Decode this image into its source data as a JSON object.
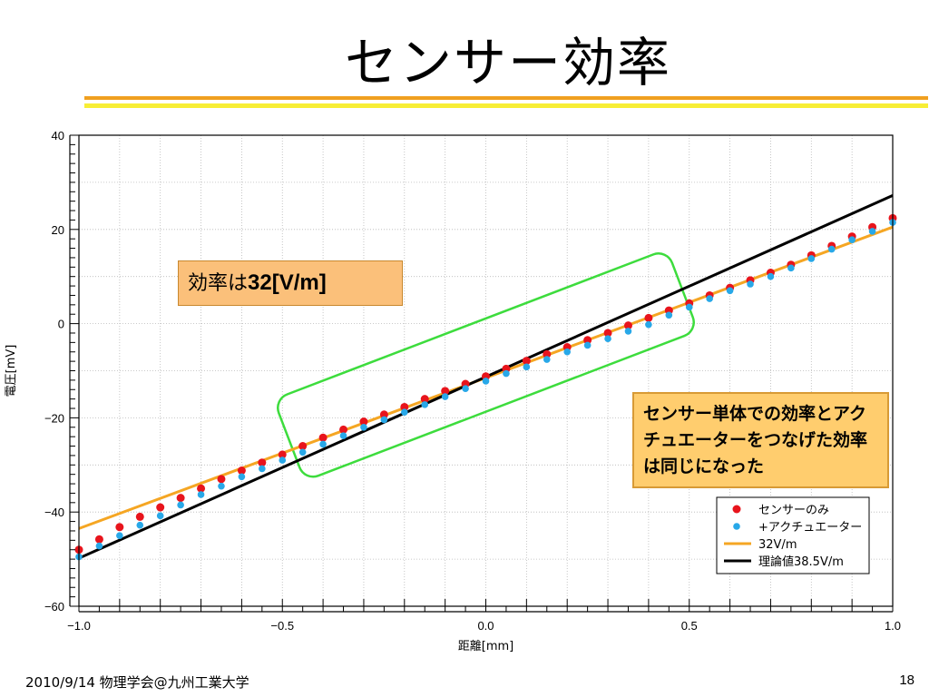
{
  "slide": {
    "title": "センサー効率",
    "callout_rate_text": "効率は",
    "callout_rate_value": "32[V/m]",
    "callout_note": "センサー単体での効率とアクチュエーターをつなげた効率は同じになった",
    "footer": "2010/9/14 物理学会@九州工業大学",
    "page_number": "18"
  },
  "colors": {
    "rule_orange": "#f0a020",
    "rule_yellow": "#f7ee36",
    "sensor_only": "#e8141c",
    "with_actuator": "#28a8e8",
    "fit_32": "#f5a623",
    "theory": "#000000",
    "highlight_box": "#3ddc3d"
  },
  "chart_data": {
    "type": "scatter",
    "xlabel": "距離[mm]",
    "ylabel": "電圧[mV]",
    "xlim": [
      -1.0,
      1.0
    ],
    "ylim": [
      -60,
      40
    ],
    "xticks": [
      -1.0,
      -0.5,
      0.0,
      0.5,
      1.0
    ],
    "xtick_labels": [
      "−1.0",
      "−0.5",
      "0.0",
      "0.5",
      "1.0"
    ],
    "yticks": [
      -60,
      -40,
      -20,
      0,
      20,
      40
    ],
    "ytick_labels": [
      "−60",
      "−40",
      "−20",
      "0",
      "20",
      "40"
    ],
    "grid": true,
    "legend_position": "bottom-right",
    "series": [
      {
        "name": "センサーのみ",
        "kind": "points",
        "x": [
          -1.0,
          -0.95,
          -0.9,
          -0.85,
          -0.8,
          -0.75,
          -0.7,
          -0.65,
          -0.6,
          -0.55,
          -0.5,
          -0.45,
          -0.4,
          -0.35,
          -0.3,
          -0.25,
          -0.2,
          -0.15,
          -0.1,
          -0.05,
          0.0,
          0.05,
          0.1,
          0.15,
          0.2,
          0.25,
          0.3,
          0.35,
          0.4,
          0.45,
          0.5,
          0.55,
          0.6,
          0.65,
          0.7,
          0.75,
          0.8,
          0.85,
          0.9,
          0.95,
          1.0
        ],
        "y": [
          -48.0,
          -45.8,
          -43.2,
          -41.0,
          -39.0,
          -37.0,
          -35.0,
          -33.0,
          -31.2,
          -29.5,
          -27.8,
          -26.0,
          -24.2,
          -22.5,
          -20.8,
          -19.3,
          -17.7,
          -16.0,
          -14.3,
          -12.8,
          -11.2,
          -9.6,
          -7.9,
          -6.5,
          -5.0,
          -3.5,
          -2.0,
          -0.4,
          1.2,
          2.8,
          4.3,
          6.0,
          7.6,
          9.2,
          10.8,
          12.5,
          14.5,
          16.5,
          18.5,
          20.5,
          22.4
        ]
      },
      {
        "name": "+アクチュエーター",
        "kind": "points",
        "x": [
          -1.0,
          -0.95,
          -0.9,
          -0.85,
          -0.8,
          -0.75,
          -0.7,
          -0.65,
          -0.6,
          -0.55,
          -0.5,
          -0.45,
          -0.4,
          -0.35,
          -0.3,
          -0.25,
          -0.2,
          -0.15,
          -0.1,
          -0.05,
          0.0,
          0.05,
          0.1,
          0.15,
          0.2,
          0.25,
          0.3,
          0.35,
          0.4,
          0.45,
          0.5,
          0.55,
          0.6,
          0.65,
          0.7,
          0.75,
          0.8,
          0.85,
          0.9,
          0.95,
          1.0
        ],
        "y": [
          -49.5,
          -47.2,
          -45.0,
          -42.8,
          -40.8,
          -38.5,
          -36.3,
          -34.5,
          -32.5,
          -30.8,
          -29.0,
          -27.3,
          -25.6,
          -23.8,
          -22.0,
          -20.4,
          -18.8,
          -17.2,
          -15.5,
          -13.8,
          -12.2,
          -10.6,
          -9.2,
          -7.6,
          -6.0,
          -4.6,
          -3.2,
          -1.6,
          -0.2,
          1.8,
          3.5,
          5.3,
          7.0,
          8.4,
          10.0,
          11.8,
          13.8,
          15.8,
          17.8,
          19.6,
          21.5
        ]
      },
      {
        "name": "32V/m",
        "kind": "line",
        "x": [
          -1.0,
          1.0
        ],
        "y": [
          -43.5,
          20.5
        ]
      },
      {
        "name": "理論値38.5V/m",
        "kind": "line",
        "x": [
          -1.0,
          1.0
        ],
        "y": [
          -49.8,
          27.2
        ]
      }
    ]
  }
}
